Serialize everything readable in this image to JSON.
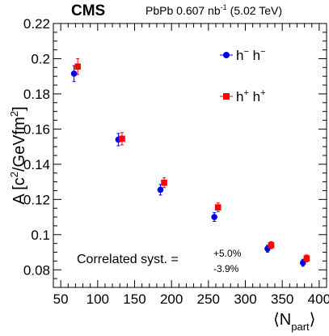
{
  "header": {
    "experiment": "CMS",
    "lumi_prefix": "PbPb 0.607 nb",
    "lumi_exp": "-1",
    "lumi_suffix": "(5.02 TeV)"
  },
  "annotation": {
    "text": "Correlated syst. =",
    "plus": "+5.0%",
    "minus": "-3.9%"
  },
  "colors": {
    "series_minus": "#0000ee",
    "series_plus": "#ff0000",
    "axis": "#000000"
  },
  "chart_data": {
    "type": "scatter",
    "xlabel": {
      "main": "⟨N",
      "sub": "part",
      "close": "⟩"
    },
    "ylabel": {
      "main": "A [c",
      "sup1": "2",
      "mid": "/GeVfm",
      "sup2": "2",
      "close": "]"
    },
    "xlim": [
      40,
      410
    ],
    "ylim": [
      0.07,
      0.22
    ],
    "xticks": [
      50,
      100,
      150,
      200,
      250,
      300,
      350,
      400
    ],
    "yticks": [
      0.08,
      0.1,
      0.12,
      0.14,
      0.16,
      0.18,
      0.2,
      0.22
    ],
    "ytick_labels": [
      "0.08",
      "0.1",
      "0.12",
      "0.14",
      "0.16",
      "0.18",
      "0.2",
      "0.22"
    ],
    "grid": false,
    "legend_position": "top-right",
    "series": [
      {
        "name_base": "h",
        "name_sup1": "−",
        "name_mid": " h",
        "name_sup2": "−",
        "marker": "circle",
        "color": "#0000ee",
        "points": [
          {
            "x": 68,
            "y": 0.1915,
            "err": 0.0045
          },
          {
            "x": 128,
            "y": 0.154,
            "err": 0.0035
          },
          {
            "x": 185,
            "y": 0.1255,
            "err": 0.003
          },
          {
            "x": 258,
            "y": 0.11,
            "err": 0.0025
          },
          {
            "x": 330,
            "y": 0.092,
            "err": 0.002
          },
          {
            "x": 378,
            "y": 0.084,
            "err": 0.002
          }
        ]
      },
      {
        "name_base": "h",
        "name_sup1": "+",
        "name_mid": " h",
        "name_sup2": "+",
        "marker": "square",
        "color": "#ff0000",
        "points": [
          {
            "x": 73,
            "y": 0.1955,
            "err": 0.0045
          },
          {
            "x": 133,
            "y": 0.1545,
            "err": 0.0035
          },
          {
            "x": 190,
            "y": 0.1295,
            "err": 0.0028
          },
          {
            "x": 263,
            "y": 0.1155,
            "err": 0.0025
          },
          {
            "x": 335,
            "y": 0.094,
            "err": 0.002
          },
          {
            "x": 383,
            "y": 0.0865,
            "err": 0.002
          }
        ]
      }
    ]
  }
}
